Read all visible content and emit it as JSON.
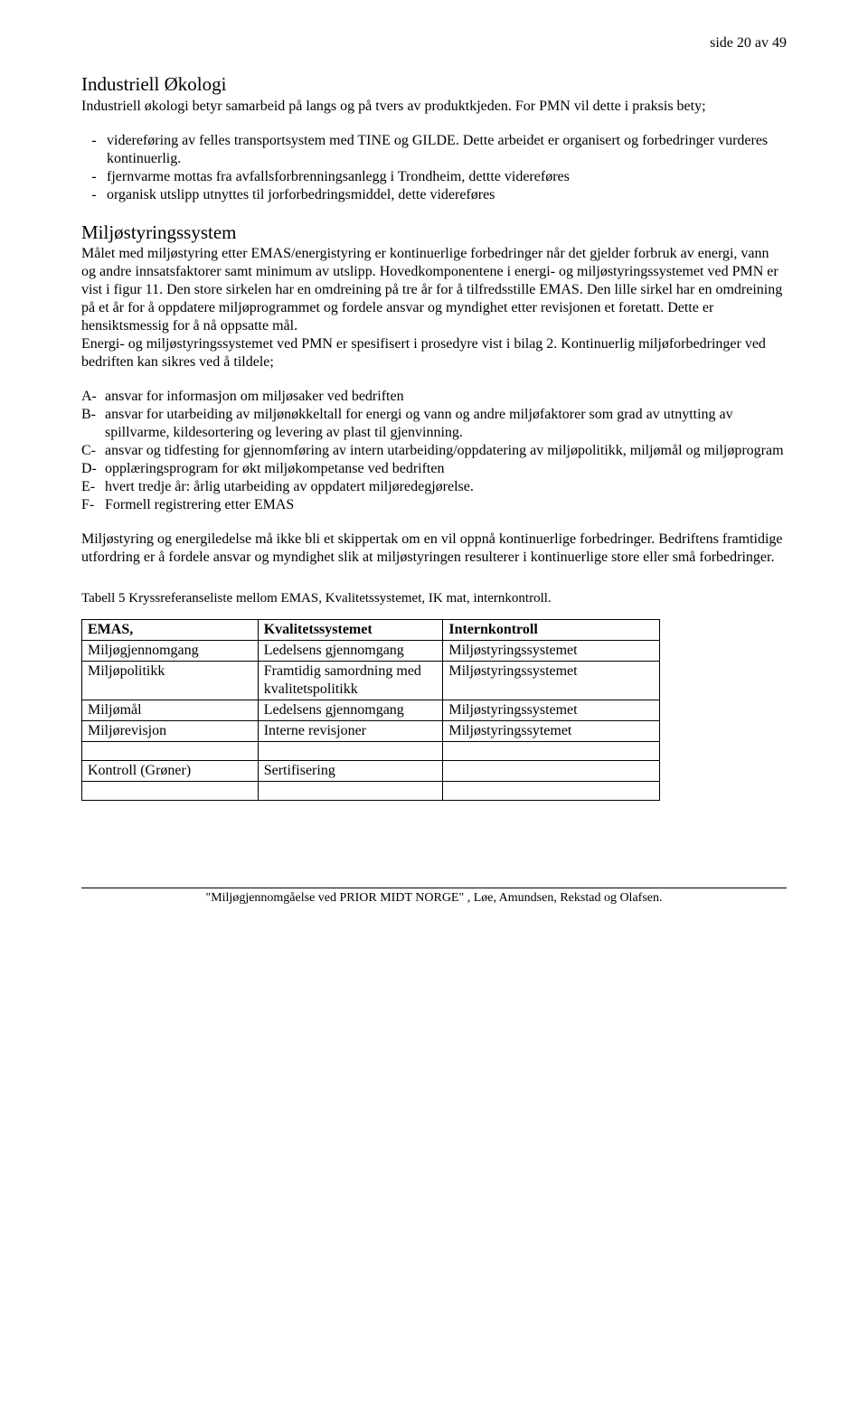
{
  "page_number": "side 20 av 49",
  "heading1": "Industriell Økologi",
  "intro": "Industriell økologi betyr samarbeid på langs og på tvers av produktkjeden. For PMN vil dette i praksis bety;",
  "bullets1": [
    "videreføring av felles transportsystem med TINE og GILDE. Dette arbeidet er organisert og forbedringer vurderes kontinuerlig.",
    "fjernvarme mottas fra avfallsforbrenningsanlegg i Trondheim, dettte videreføres",
    "organisk utslipp utnyttes til jorforbedringsmiddel, dette videreføres"
  ],
  "heading2": "Miljøstyringssystem",
  "body1": "Målet med miljøstyring etter EMAS/energistyring er kontinuerlige forbedringer når det gjelder forbruk av energi, vann og andre innsatsfaktorer samt minimum av utslipp. Hovedkomponentene i energi- og miljøstyringssystemet ved PMN er vist i figur 11. Den store sirkelen har en omdreining på tre år for å tilfredsstille EMAS. Den lille sirkel har en omdreining på et år for å oppdatere miljøprogrammet  og fordele ansvar og myndighet etter revisjonen et foretatt. Dette er hensiktsmessig for å nå oppsatte mål.",
  "body2": "Energi- og miljøstyringssystemet ved PMN er spesifisert i prosedyre vist i bilag 2. Kontinuerlig miljøforbedringer ved bedriften kan sikres ved å tildele;",
  "letters": [
    {
      "label": "A-",
      "text": "ansvar for informasjon om miljøsaker ved bedriften"
    },
    {
      "label": "B-",
      "text": "ansvar for utarbeiding av miljønøkkeltall for energi og vann og andre miljøfaktorer som grad av utnytting av spillvarme, kildesortering og levering av plast til gjenvinning."
    },
    {
      "label": "C-",
      "text": "ansvar og tidfesting for gjennomføring av intern utarbeiding/oppdatering av miljøpolitikk, miljømål og miljøprogram"
    },
    {
      "label": "D-",
      "text": "opplæringsprogram for økt miljøkompetanse ved bedriften"
    },
    {
      "label": "E-",
      "text": "hvert tredje år: årlig utarbeiding av oppdatert miljøredegjørelse."
    },
    {
      "label": "F-",
      "text": "Formell  registrering etter EMAS"
    }
  ],
  "body3": "Miljøstyring og energiledelse må ikke bli et skippertak om en vil oppnå kontinuerlige forbedringer. Bedriftens framtidige utfordring er å fordele ansvar og myndighet slik at miljøstyringen resulterer i kontinuerlige store eller små forbedringer.",
  "table_caption": "Tabell 5 Kryssreferanseliste mellom EMAS, Kvalitetssystemet, IK mat, internkontroll.",
  "table": {
    "headers": [
      "EMAS,",
      "Kvalitetssystemet",
      "Internkontroll"
    ],
    "rows": [
      [
        "Miljøgjennomgang",
        "Ledelsens gjennomgang",
        "Miljøstyringssystemet"
      ],
      [
        "Miljøpolitikk",
        "Framtidig samordning med kvalitetspolitikk",
        "Miljøstyringssystemet"
      ],
      [
        "Miljømål",
        "Ledelsens gjennomgang",
        "Miljøstyringssystemet"
      ],
      [
        "Miljørevisjon",
        "Interne revisjoner",
        "Miljøstyringssytemet"
      ],
      [
        "",
        "",
        ""
      ],
      [
        "Kontroll (Grøner)",
        "Sertifisering",
        ""
      ],
      [
        "",
        "",
        ""
      ]
    ]
  },
  "footer": "\"Miljøgjennomgåelse ved PRIOR MIDT NORGE\" , Løe, Amundsen, Rekstad og Olafsen.",
  "colors": {
    "text": "#000000",
    "background": "#ffffff",
    "border": "#000000"
  },
  "typography": {
    "body_fontsize": 16,
    "heading_fontsize": 21,
    "caption_fontsize": 15,
    "footer_fontsize": 14,
    "font_family": "Times New Roman"
  }
}
